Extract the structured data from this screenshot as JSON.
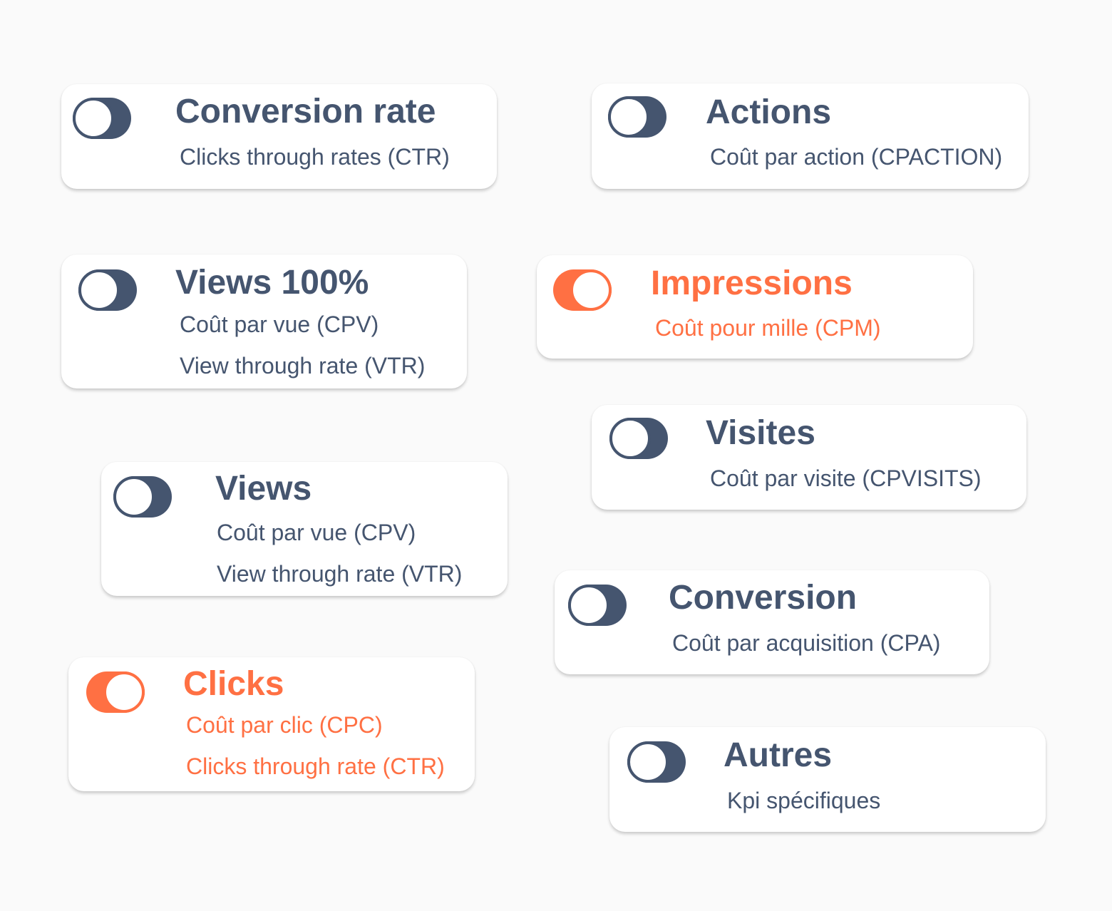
{
  "colors": {
    "inactive": "#45556f",
    "active": "#ff7043",
    "background": "#fafafa"
  },
  "cards": [
    {
      "title": "Conversion rate",
      "lines": [
        "Clicks through rates (CTR)"
      ],
      "active": false
    },
    {
      "title": "Actions",
      "lines": [
        "Coût par action (CPACTION)"
      ],
      "active": false
    },
    {
      "title": "Views 100%",
      "lines": [
        "Coût par vue (CPV)",
        "View through rate (VTR)"
      ],
      "active": false
    },
    {
      "title": "Impressions",
      "lines": [
        "Coût pour mille (CPM)"
      ],
      "active": true
    },
    {
      "title": "Visites",
      "lines": [
        "Coût par visite (CPVISITS)"
      ],
      "active": false
    },
    {
      "title": "Views",
      "lines": [
        "Coût par vue (CPV)",
        "View through rate (VTR)"
      ],
      "active": false
    },
    {
      "title": "Conversion",
      "lines": [
        "Coût par acquisition (CPA)"
      ],
      "active": false
    },
    {
      "title": "Clicks",
      "lines": [
        "Coût par clic (CPC)",
        "Clicks through rate (CTR)"
      ],
      "active": true
    },
    {
      "title": "Autres",
      "lines": [
        "Kpi spécifiques"
      ],
      "active": false
    }
  ]
}
